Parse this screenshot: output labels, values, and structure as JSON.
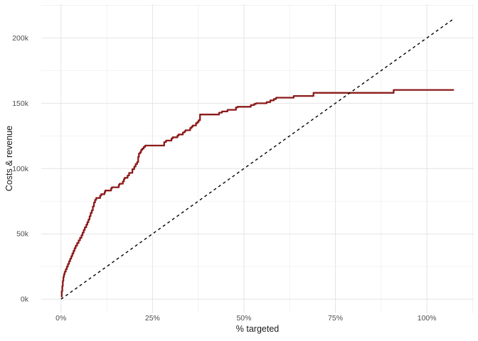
{
  "chart_data": {
    "type": "line",
    "title": "",
    "xlabel": "% targeted",
    "ylabel": "Costs & revenue",
    "x_unit": "percent targeted",
    "y_unit": "currency (thousands)",
    "xlim": [
      -5.4,
      112.8
    ],
    "ylim": [
      -10.8,
      225.8
    ],
    "grid": true,
    "legend": "none",
    "x_ticks": {
      "values": [
        0,
        25,
        50,
        75,
        100
      ],
      "labels": [
        "0%",
        "25%",
        "50%",
        "75%",
        "100%"
      ]
    },
    "x_minor_ticks": [
      12.5,
      37.5,
      62.5,
      87.5,
      112.5
    ],
    "y_ticks": {
      "values": [
        0,
        50,
        100,
        150,
        200
      ],
      "labels": [
        "0k",
        "50k",
        "100k",
        "150k",
        "200k"
      ]
    },
    "y_minor_ticks": [
      25,
      75,
      125,
      175,
      225
    ],
    "series": [
      {
        "name": "cumulative-gains-step-curve",
        "draw": "step",
        "color": "#8B1A1A",
        "width": 2.3,
        "dash": "none",
        "points": [
          [
            0,
            2
          ],
          [
            0.2,
            6
          ],
          [
            0.35,
            10
          ],
          [
            0.5,
            14
          ],
          [
            0.65,
            17
          ],
          [
            0.8,
            19
          ],
          [
            1.0,
            21
          ],
          [
            1.3,
            23
          ],
          [
            1.6,
            25
          ],
          [
            1.9,
            27
          ],
          [
            2.2,
            29
          ],
          [
            2.5,
            31
          ],
          [
            2.8,
            33
          ],
          [
            3.1,
            35
          ],
          [
            3.4,
            37
          ],
          [
            3.7,
            39
          ],
          [
            4.0,
            41
          ],
          [
            4.4,
            43
          ],
          [
            4.8,
            45
          ],
          [
            5.2,
            47
          ],
          [
            5.6,
            49
          ],
          [
            5.9,
            51
          ],
          [
            6.2,
            53
          ],
          [
            6.5,
            55
          ],
          [
            6.9,
            57
          ],
          [
            7.2,
            59
          ],
          [
            7.5,
            61
          ],
          [
            7.8,
            63.5
          ],
          [
            8.1,
            66
          ],
          [
            8.4,
            68
          ],
          [
            8.7,
            71
          ],
          [
            9.0,
            74
          ],
          [
            9.3,
            76
          ],
          [
            9.6,
            77.5
          ],
          [
            10.7,
            79.3
          ],
          [
            11.0,
            80.4
          ],
          [
            11.9,
            82
          ],
          [
            12.1,
            83.2
          ],
          [
            13.7,
            84.8
          ],
          [
            13.9,
            85.7
          ],
          [
            15.8,
            87.5
          ],
          [
            16.0,
            88.4
          ],
          [
            16.9,
            90.2
          ],
          [
            17.2,
            92
          ],
          [
            17.4,
            92.9
          ],
          [
            18.2,
            94.7
          ],
          [
            18.6,
            96.7
          ],
          [
            19.5,
            99.5
          ],
          [
            20.0,
            101.5
          ],
          [
            20.4,
            103.5
          ],
          [
            20.8,
            105
          ],
          [
            21.1,
            109
          ],
          [
            21.3,
            111.5
          ],
          [
            21.6,
            112.5
          ],
          [
            21.9,
            114.3
          ],
          [
            22.2,
            115.3
          ],
          [
            22.6,
            116.6
          ],
          [
            23.0,
            117.6
          ],
          [
            28.2,
            120.3
          ],
          [
            28.7,
            121.4
          ],
          [
            30.2,
            123
          ],
          [
            30.5,
            123.9
          ],
          [
            31.8,
            125.2
          ],
          [
            32.1,
            126.1
          ],
          [
            33.3,
            127.7
          ],
          [
            33.8,
            128.5
          ],
          [
            34.0,
            129.3
          ],
          [
            35.3,
            131.1
          ],
          [
            35.7,
            132.1
          ],
          [
            36.0,
            133.0
          ],
          [
            36.9,
            134.8
          ],
          [
            37.3,
            135.7
          ],
          [
            37.6,
            137.0
          ],
          [
            38.0,
            141.4
          ],
          [
            43.2,
            142.8
          ],
          [
            44.0,
            143.7
          ],
          [
            45.5,
            145.0
          ],
          [
            47.8,
            146.8
          ],
          [
            48.3,
            147.3
          ],
          [
            51.9,
            148.6
          ],
          [
            52.8,
            149.5
          ],
          [
            53.3,
            150.0
          ],
          [
            56.2,
            150.9
          ],
          [
            57.2,
            152.2
          ],
          [
            58.2,
            153.3
          ],
          [
            58.8,
            154.3
          ],
          [
            63.6,
            155.6
          ],
          [
            69.0,
            158.0
          ],
          [
            90.9,
            160.2
          ],
          [
            107.4,
            160.2
          ]
        ]
      },
      {
        "name": "cost-baseline-dashed",
        "draw": "straight",
        "color": "#000000",
        "width": 1.4,
        "dash": "4 4",
        "points": [
          [
            0,
            0
          ],
          [
            107.4,
            214.8
          ]
        ]
      }
    ]
  },
  "colors": {
    "background": "#FFFFFF",
    "grid_major": "#E4E4E4",
    "grid_minor": "#F2F2F2",
    "tick_label": "#4D4D4D",
    "axis_title": "#1A1A1A"
  }
}
